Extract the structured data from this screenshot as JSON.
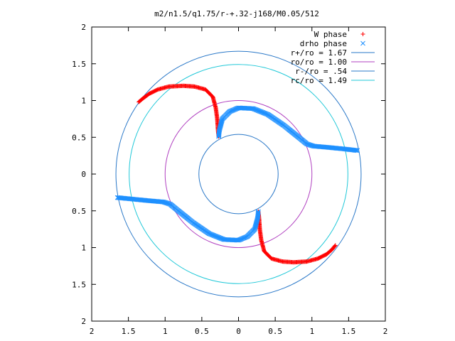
{
  "chart_data": {
    "type": "scatter",
    "title": "m2/n1.5/q1.75/r-+.32-j168/M0.05/512",
    "xlabel": "",
    "ylabel": "",
    "xlim": [
      -2,
      2
    ],
    "ylim": [
      -2,
      2
    ],
    "x_tick_values": [
      -2,
      -1.5,
      -1,
      -0.5,
      0,
      0.5,
      1,
      1.5,
      2
    ],
    "y_tick_values": [
      -2,
      -1.5,
      -1,
      -0.5,
      0,
      0.5,
      1,
      1.5,
      2
    ],
    "x_tick_labels": [
      "2",
      "1.5",
      "1",
      "0.5",
      "0",
      "0.5",
      "1",
      "1.5",
      "2"
    ],
    "y_tick_labels": [
      "2",
      "1.5",
      "1",
      "0.5",
      "0",
      "0.5",
      "1",
      "1.5",
      "2"
    ],
    "grid": false,
    "legend_position": "top-right",
    "series": [
      {
        "name": "W phase",
        "marker": "+",
        "color": "#ff0000",
        "arms": [
          [
            [
              -1.36,
              0.98
            ],
            [
              -1.3,
              1.03
            ],
            [
              -1.22,
              1.09
            ],
            [
              -1.1,
              1.15
            ],
            [
              -0.95,
              1.19
            ],
            [
              -0.75,
              1.2
            ],
            [
              -0.6,
              1.19
            ],
            [
              -0.45,
              1.15
            ],
            [
              -0.35,
              1.05
            ],
            [
              -0.31,
              0.9
            ],
            [
              -0.29,
              0.75
            ],
            [
              -0.28,
              0.6
            ],
            [
              -0.27,
              0.51
            ]
          ],
          [
            [
              1.32,
              -0.97
            ],
            [
              1.27,
              -1.03
            ],
            [
              1.2,
              -1.09
            ],
            [
              1.08,
              -1.15
            ],
            [
              0.93,
              -1.19
            ],
            [
              0.75,
              -1.2
            ],
            [
              0.6,
              -1.19
            ],
            [
              0.45,
              -1.15
            ],
            [
              0.35,
              -1.05
            ],
            [
              0.31,
              -0.9
            ],
            [
              0.29,
              -0.75
            ],
            [
              0.28,
              -0.6
            ],
            [
              0.27,
              -0.51
            ]
          ]
        ]
      },
      {
        "name": "drho phase",
        "marker": "x",
        "color": "#1e90ff",
        "arms": [
          [
            [
              -0.27,
              0.51
            ],
            [
              -0.26,
              0.6
            ],
            [
              -0.22,
              0.75
            ],
            [
              -0.12,
              0.85
            ],
            [
              0.0,
              0.9
            ],
            [
              0.2,
              0.89
            ],
            [
              0.4,
              0.81
            ],
            [
              0.62,
              0.66
            ],
            [
              0.82,
              0.5
            ],
            [
              0.93,
              0.41
            ],
            [
              1.02,
              0.38
            ],
            [
              1.25,
              0.36
            ],
            [
              1.45,
              0.34
            ],
            [
              1.62,
              0.32
            ]
          ],
          [
            [
              0.27,
              -0.51
            ],
            [
              0.26,
              -0.6
            ],
            [
              0.22,
              -0.75
            ],
            [
              0.12,
              -0.85
            ],
            [
              0.0,
              -0.9
            ],
            [
              -0.2,
              -0.89
            ],
            [
              -0.4,
              -0.81
            ],
            [
              -0.62,
              -0.66
            ],
            [
              -0.82,
              -0.5
            ],
            [
              -0.93,
              -0.41
            ],
            [
              -1.02,
              -0.38
            ],
            [
              -1.25,
              -0.36
            ],
            [
              -1.45,
              -0.34
            ],
            [
              -1.65,
              -0.32
            ]
          ]
        ]
      }
    ],
    "circles": [
      {
        "name": "r+/ro = 1.67",
        "radius": 1.67,
        "color": "#2a78c8"
      },
      {
        "name": "ro/ro = 1.00",
        "radius": 1.0,
        "color": "#b040c0"
      },
      {
        "name": "r-/ro = .54",
        "radius": 0.54,
        "color": "#2a78c8"
      },
      {
        "name": "rc/ro = 1.49",
        "radius": 1.49,
        "color": "#20c8d8"
      }
    ]
  }
}
